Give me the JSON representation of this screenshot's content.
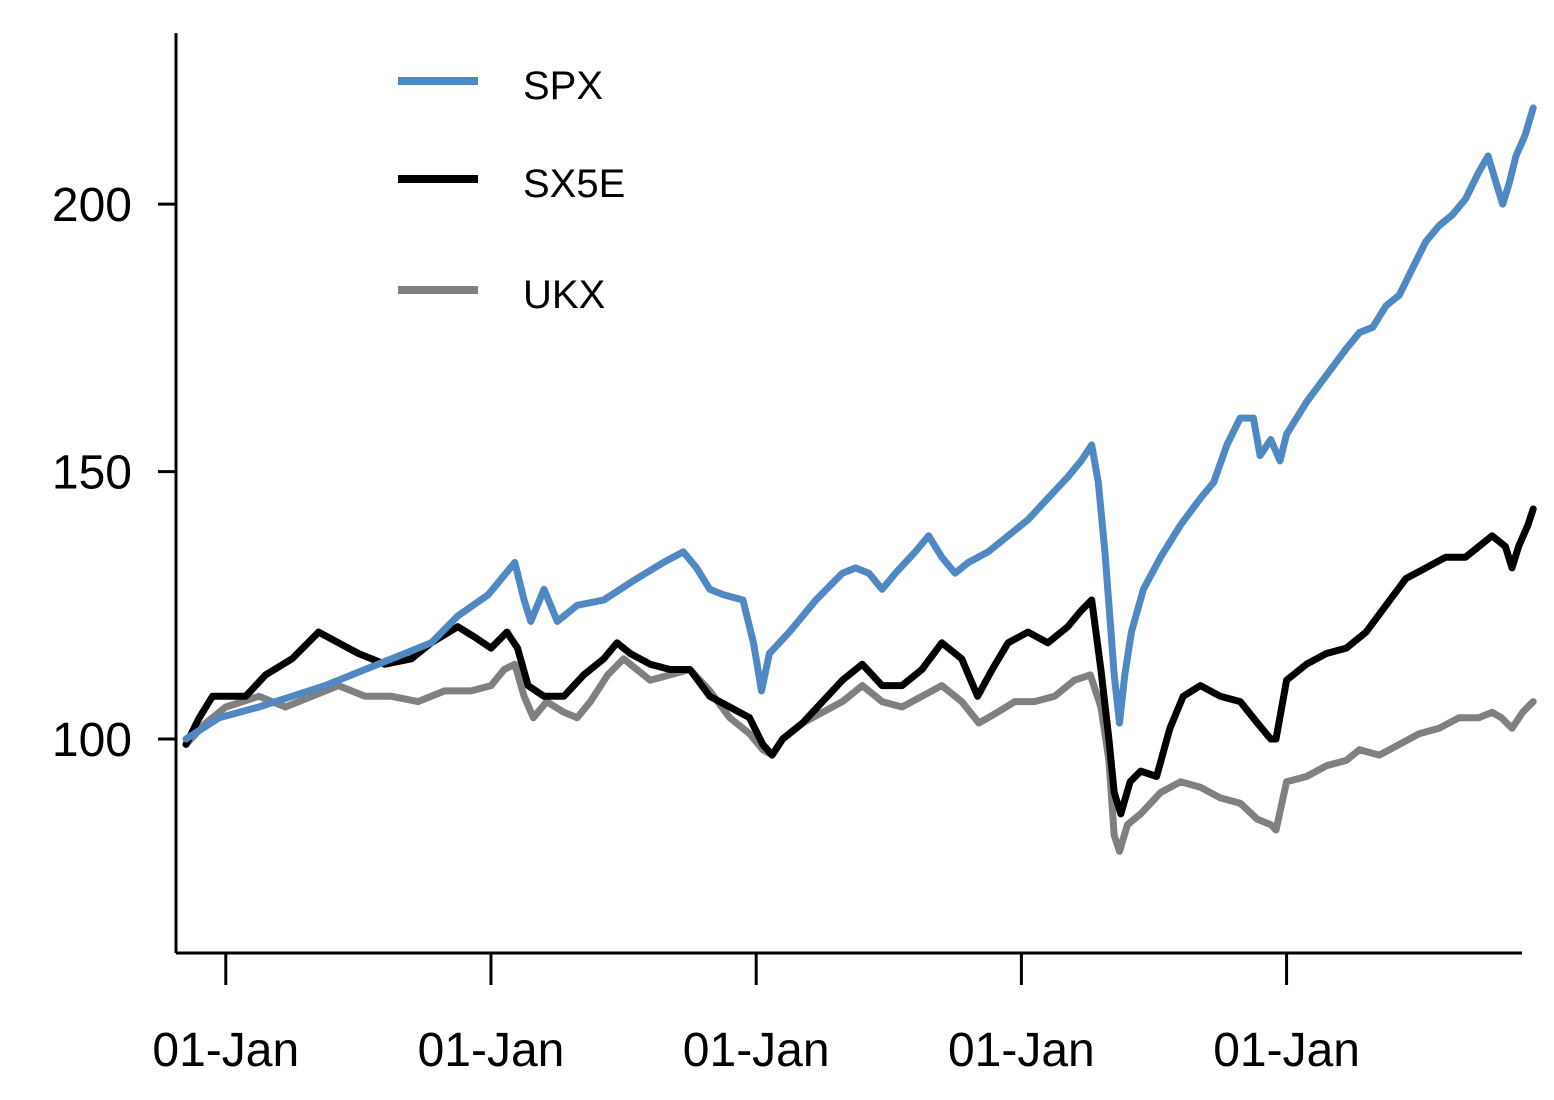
{
  "chart_data": {
    "type": "line",
    "title": "",
    "xlabel": "",
    "ylabel": "",
    "ylim": [
      60,
      232
    ],
    "yticks": [
      100,
      150,
      200
    ],
    "ytick_labels": [
      "100",
      "150",
      "200"
    ],
    "xlim": [
      0,
      1000
    ],
    "xticks": [
      30,
      230,
      430,
      630,
      830
    ],
    "xtick_labels": [
      "01-Jan",
      "01-Jan",
      "01-Jan",
      "01-Jan",
      "01-Jan"
    ],
    "grid": false,
    "legend_position": "top-left",
    "series": [
      {
        "name": "SPX",
        "color": "#4f88c2",
        "points": [
          [
            0,
            100
          ],
          [
            25,
            104
          ],
          [
            55,
            106
          ],
          [
            80,
            108
          ],
          [
            105,
            110
          ],
          [
            135,
            113
          ],
          [
            165,
            116
          ],
          [
            185,
            118
          ],
          [
            205,
            123
          ],
          [
            228,
            127
          ],
          [
            248,
            133
          ],
          [
            255,
            126
          ],
          [
            260,
            122
          ],
          [
            270,
            128
          ],
          [
            280,
            122
          ],
          [
            295,
            125
          ],
          [
            315,
            126
          ],
          [
            340,
            130
          ],
          [
            360,
            133
          ],
          [
            375,
            135
          ],
          [
            385,
            132
          ],
          [
            395,
            128
          ],
          [
            405,
            127
          ],
          [
            420,
            126
          ],
          [
            428,
            118
          ],
          [
            434,
            109
          ],
          [
            440,
            116
          ],
          [
            455,
            120
          ],
          [
            475,
            126
          ],
          [
            495,
            131
          ],
          [
            505,
            132
          ],
          [
            515,
            131
          ],
          [
            525,
            128
          ],
          [
            535,
            131
          ],
          [
            550,
            135
          ],
          [
            560,
            138
          ],
          [
            570,
            134
          ],
          [
            580,
            131
          ],
          [
            590,
            133
          ],
          [
            605,
            135
          ],
          [
            620,
            138
          ],
          [
            635,
            141
          ],
          [
            650,
            145
          ],
          [
            665,
            149
          ],
          [
            675,
            152
          ],
          [
            683,
            155
          ],
          [
            688,
            148
          ],
          [
            693,
            135
          ],
          [
            697,
            122
          ],
          [
            700,
            112
          ],
          [
            704,
            103
          ],
          [
            708,
            112
          ],
          [
            713,
            120
          ],
          [
            722,
            128
          ],
          [
            735,
            134
          ],
          [
            750,
            140
          ],
          [
            765,
            145
          ],
          [
            775,
            148
          ],
          [
            785,
            155
          ],
          [
            795,
            160
          ],
          [
            805,
            160
          ],
          [
            810,
            153
          ],
          [
            818,
            156
          ],
          [
            825,
            152
          ],
          [
            830,
            157
          ],
          [
            845,
            163
          ],
          [
            860,
            168
          ],
          [
            875,
            173
          ],
          [
            885,
            176
          ],
          [
            895,
            177
          ],
          [
            905,
            181
          ],
          [
            915,
            183
          ],
          [
            925,
            188
          ],
          [
            935,
            193
          ],
          [
            945,
            196
          ],
          [
            955,
            198
          ],
          [
            965,
            201
          ],
          [
            975,
            206
          ],
          [
            982,
            209
          ],
          [
            988,
            204
          ],
          [
            993,
            200
          ],
          [
            998,
            204
          ],
          [
            1003,
            209
          ],
          [
            1010,
            213
          ],
          [
            1016,
            218
          ]
        ]
      },
      {
        "name": "SX5E",
        "color": "#000000",
        "points": [
          [
            0,
            99
          ],
          [
            10,
            104
          ],
          [
            20,
            108
          ],
          [
            45,
            108
          ],
          [
            60,
            112
          ],
          [
            80,
            115
          ],
          [
            100,
            120
          ],
          [
            115,
            118
          ],
          [
            130,
            116
          ],
          [
            150,
            114
          ],
          [
            170,
            115
          ],
          [
            185,
            118
          ],
          [
            205,
            121
          ],
          [
            218,
            119
          ],
          [
            230,
            117
          ],
          [
            242,
            120
          ],
          [
            250,
            117
          ],
          [
            258,
            110
          ],
          [
            270,
            108
          ],
          [
            285,
            108
          ],
          [
            300,
            112
          ],
          [
            315,
            115
          ],
          [
            325,
            118
          ],
          [
            335,
            116
          ],
          [
            350,
            114
          ],
          [
            365,
            113
          ],
          [
            380,
            113
          ],
          [
            395,
            108
          ],
          [
            410,
            106
          ],
          [
            425,
            104
          ],
          [
            435,
            99
          ],
          [
            442,
            97
          ],
          [
            450,
            100
          ],
          [
            465,
            103
          ],
          [
            480,
            107
          ],
          [
            495,
            111
          ],
          [
            510,
            114
          ],
          [
            525,
            110
          ],
          [
            540,
            110
          ],
          [
            555,
            113
          ],
          [
            570,
            118
          ],
          [
            585,
            115
          ],
          [
            597,
            108
          ],
          [
            608,
            113
          ],
          [
            620,
            118
          ],
          [
            635,
            120
          ],
          [
            650,
            118
          ],
          [
            665,
            121
          ],
          [
            675,
            124
          ],
          [
            683,
            126
          ],
          [
            690,
            113
          ],
          [
            696,
            100
          ],
          [
            700,
            90
          ],
          [
            705,
            86
          ],
          [
            712,
            92
          ],
          [
            720,
            94
          ],
          [
            732,
            93
          ],
          [
            742,
            102
          ],
          [
            752,
            108
          ],
          [
            765,
            110
          ],
          [
            780,
            108
          ],
          [
            795,
            107
          ],
          [
            808,
            103
          ],
          [
            818,
            100
          ],
          [
            822,
            100
          ],
          [
            830,
            111
          ],
          [
            845,
            114
          ],
          [
            860,
            116
          ],
          [
            875,
            117
          ],
          [
            890,
            120
          ],
          [
            905,
            125
          ],
          [
            920,
            130
          ],
          [
            935,
            132
          ],
          [
            950,
            134
          ],
          [
            965,
            134
          ],
          [
            975,
            136
          ],
          [
            985,
            138
          ],
          [
            995,
            136
          ],
          [
            1000,
            132
          ],
          [
            1005,
            136
          ],
          [
            1012,
            140
          ],
          [
            1016,
            143
          ]
        ]
      },
      {
        "name": "UKX",
        "color": "#808080",
        "points": [
          [
            0,
            99
          ],
          [
            15,
            103
          ],
          [
            30,
            106
          ],
          [
            55,
            108
          ],
          [
            75,
            106
          ],
          [
            95,
            108
          ],
          [
            115,
            110
          ],
          [
            135,
            108
          ],
          [
            155,
            108
          ],
          [
            175,
            107
          ],
          [
            195,
            109
          ],
          [
            215,
            109
          ],
          [
            230,
            110
          ],
          [
            240,
            113
          ],
          [
            248,
            114
          ],
          [
            255,
            108
          ],
          [
            262,
            104
          ],
          [
            272,
            107
          ],
          [
            285,
            105
          ],
          [
            295,
            104
          ],
          [
            305,
            107
          ],
          [
            318,
            112
          ],
          [
            330,
            115
          ],
          [
            340,
            113
          ],
          [
            350,
            111
          ],
          [
            365,
            112
          ],
          [
            380,
            113
          ],
          [
            395,
            109
          ],
          [
            410,
            104
          ],
          [
            425,
            101
          ],
          [
            435,
            98
          ],
          [
            442,
            97
          ],
          [
            450,
            100
          ],
          [
            465,
            103
          ],
          [
            480,
            105
          ],
          [
            495,
            107
          ],
          [
            510,
            110
          ],
          [
            525,
            107
          ],
          [
            540,
            106
          ],
          [
            555,
            108
          ],
          [
            570,
            110
          ],
          [
            585,
            107
          ],
          [
            598,
            103
          ],
          [
            612,
            105
          ],
          [
            625,
            107
          ],
          [
            640,
            107
          ],
          [
            655,
            108
          ],
          [
            670,
            111
          ],
          [
            682,
            112
          ],
          [
            690,
            106
          ],
          [
            696,
            96
          ],
          [
            700,
            82
          ],
          [
            704,
            79
          ],
          [
            710,
            84
          ],
          [
            720,
            86
          ],
          [
            735,
            90
          ],
          [
            750,
            92
          ],
          [
            765,
            91
          ],
          [
            780,
            89
          ],
          [
            795,
            88
          ],
          [
            808,
            85
          ],
          [
            818,
            84
          ],
          [
            822,
            83
          ],
          [
            830,
            92
          ],
          [
            845,
            93
          ],
          [
            860,
            95
          ],
          [
            875,
            96
          ],
          [
            885,
            98
          ],
          [
            900,
            97
          ],
          [
            915,
            99
          ],
          [
            930,
            101
          ],
          [
            945,
            102
          ],
          [
            960,
            104
          ],
          [
            975,
            104
          ],
          [
            985,
            105
          ],
          [
            992,
            104
          ],
          [
            1000,
            102
          ],
          [
            1008,
            105
          ],
          [
            1016,
            107
          ]
        ]
      }
    ]
  }
}
